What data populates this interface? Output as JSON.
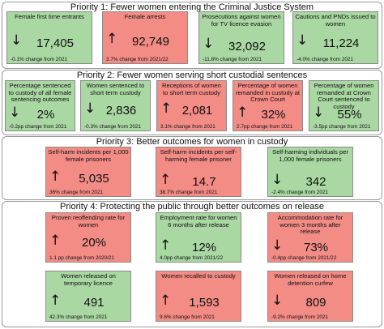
{
  "sections": [
    {
      "title": "Priority 1: Fewer women entering the Criminal Justice System",
      "cards": [
        {
          "label": "Female first time entrants",
          "arrow": "↓",
          "value": "17,405",
          "change": "-0.1% change from 2021",
          "status": "green"
        },
        {
          "label": "Female arrests",
          "arrow": "↑",
          "value": "92,749",
          "change": "3.7% change from 2021/22",
          "status": "red"
        },
        {
          "label": "Prosecutions against women for TV licence evasion",
          "arrow": "↓",
          "value": "32,092",
          "change": "-11.8% change from 2021",
          "status": "green"
        },
        {
          "label": "Cautions and PNDs issued to women",
          "arrow": "↓",
          "value": "11,224",
          "change": "-4.0% change from 2021",
          "status": "green"
        }
      ]
    },
    {
      "title": "Priority 2: Fewer women serving short custodial sentences",
      "cards": [
        {
          "label": "Percentage sentenced to custody of all female sentencing outcomes",
          "arrow": "↓",
          "value": "2%",
          "change": "-0.2pp change from 2021",
          "status": "green"
        },
        {
          "label": "Women sentenced to short term custody",
          "arrow": "↓",
          "value": "2,836",
          "change": "-0.3% change from 2021",
          "status": "green"
        },
        {
          "label": "Receptions of women to short term custody",
          "arrow": "↑",
          "value": "2,081",
          "change": "3.1% change from 2021",
          "status": "red"
        },
        {
          "label": "Percentage of women remanded in custody at Crown Court",
          "arrow": "↑",
          "value": "32%",
          "change": "2.7pp change from 2021",
          "status": "red"
        },
        {
          "label": "Percentage of women remanded at Crown Court sentenced to custody",
          "arrow": "↓",
          "value": "55%",
          "change": "-3.5pp change from 2021",
          "status": "green"
        }
      ]
    },
    {
      "title": "Priority 3: Better outcomes for women in custody",
      "cards": [
        {
          "label": "Self-harm incidents per 1,000 female prisoners",
          "arrow": "↑",
          "value": "5,035",
          "change": "36% change from 2021",
          "status": "red"
        },
        {
          "label": "Self-harm incidents per self-harming female prisoner",
          "arrow": "↑",
          "value": "14.7",
          "change": "38.7% change from 2021",
          "status": "red"
        },
        {
          "label": "Self-harming individuals per 1,000 female prisoners",
          "arrow": "↓",
          "value": "342",
          "change": "-2.4% change from 2021",
          "status": "green"
        }
      ]
    },
    {
      "title": "Priority 4: Protecting the public through better outcomes on release",
      "cards": [
        {
          "label": "Proven reoffending rate for women",
          "arrow": "↑",
          "value": "20%",
          "change": "1.1 pp change from 2020/21",
          "status": "red"
        },
        {
          "label": "Employment rate for women 6 months after release",
          "arrow": "↑",
          "value": "12%",
          "change": "4.0pp change from 2021/22",
          "status": "green"
        },
        {
          "label": "Accommodation rate for women 3 months after release",
          "arrow": "↓",
          "value": "73%",
          "change": "-0.4pp change from 2021/22",
          "status": "red"
        },
        {
          "label": "Women released on temporary licence",
          "arrow": "↑",
          "value": "491",
          "change": "42.3% change from 2021",
          "status": "green"
        },
        {
          "label": "Women recalled to custody",
          "arrow": "↑",
          "value": "1,593",
          "change": "9.6% change from 2021",
          "status": "red"
        },
        {
          "label": "Women released on home detention curfew",
          "arrow": "↓",
          "value": "809",
          "change": "-9.2% change from 2021",
          "status": "red"
        }
      ]
    }
  ]
}
